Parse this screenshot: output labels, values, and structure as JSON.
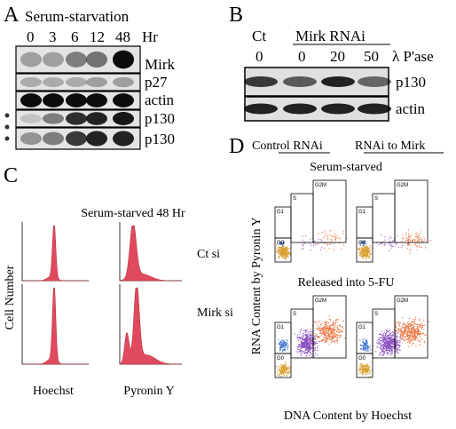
{
  "panel_a": {
    "label": "A",
    "title": "Serum-starvation",
    "timepoints": [
      "0",
      "3",
      "6",
      "12",
      "48"
    ],
    "unit": "Hr",
    "rows": [
      "Mirk",
      "p27",
      "actin",
      "p130",
      "p130"
    ]
  },
  "panel_b": {
    "label": "B",
    "control": "Ct",
    "group": "Mirk RNAi",
    "lanes": [
      "0",
      "0",
      "20",
      "50"
    ],
    "treatment": "λ P'ase",
    "rows": [
      "p130",
      "actin"
    ]
  },
  "panel_c": {
    "label": "C",
    "title": "Serum-starved 48 Hr",
    "conditions": [
      "Ct si",
      "Mirk si"
    ],
    "y_label": "Cell Number",
    "x_labels": [
      "Hoechst",
      "Pyronin Y"
    ]
  },
  "panel_d": {
    "label": "D",
    "columns": [
      "Control RNAi",
      "RNAi to Mirk"
    ],
    "conditions": [
      "Serum-starved",
      "Released into 5-FU"
    ],
    "y_label": "RNA Content by Pyronin Y",
    "x_label": "DNA Content by Hoechst",
    "gates": [
      "G1",
      "S",
      "G2M",
      "G0"
    ]
  }
}
